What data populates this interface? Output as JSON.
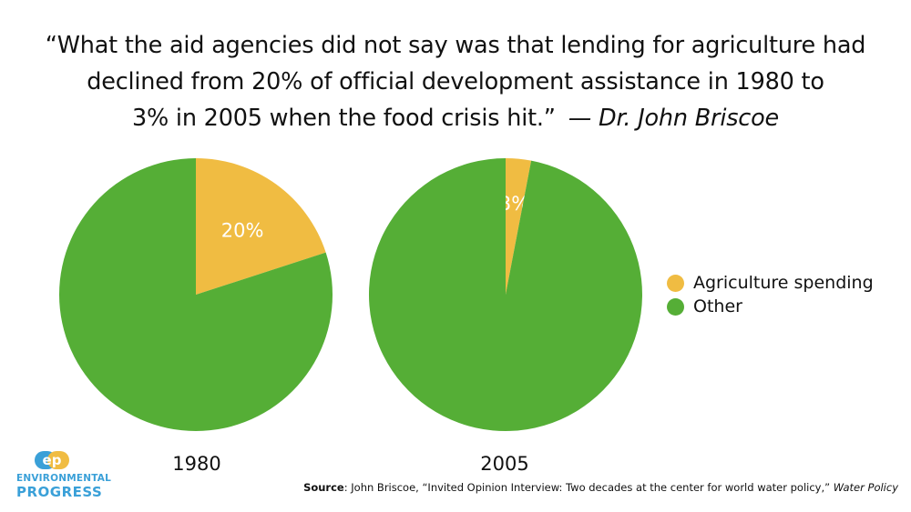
{
  "quote": {
    "line1": "“What the aid agencies did not say was that lending for agriculture had",
    "line2": "declined from 20% of official development assistance in 1980 to",
    "line3": "3% in 2005 when the food crisis hit.”",
    "attribution": "— Dr. John Briscoe"
  },
  "chart_data": [
    {
      "type": "pie",
      "title": "1980",
      "slices": [
        {
          "label": "Agriculture spending",
          "value": 20,
          "display": "20%"
        },
        {
          "label": "Other",
          "value": 80,
          "display": ""
        }
      ]
    },
    {
      "type": "pie",
      "title": "2005",
      "slices": [
        {
          "label": "Agriculture spending",
          "value": 3,
          "display": "3%"
        },
        {
          "label": "Other",
          "value": 97,
          "display": ""
        }
      ]
    }
  ],
  "legend": [
    {
      "label": "Agriculture spending",
      "color": "#f0bc42"
    },
    {
      "label": "Other",
      "color": "#55ae36"
    }
  ],
  "source": {
    "prefix": "Source",
    "text": ": John Briscoe, “Invited Opinion Interview: Two decades at the center for world water policy,” ",
    "publication": "Water Policy"
  },
  "logo": {
    "mark": "ep",
    "line1": "ENVIRONMENTAL",
    "line2": "PROGRESS"
  }
}
